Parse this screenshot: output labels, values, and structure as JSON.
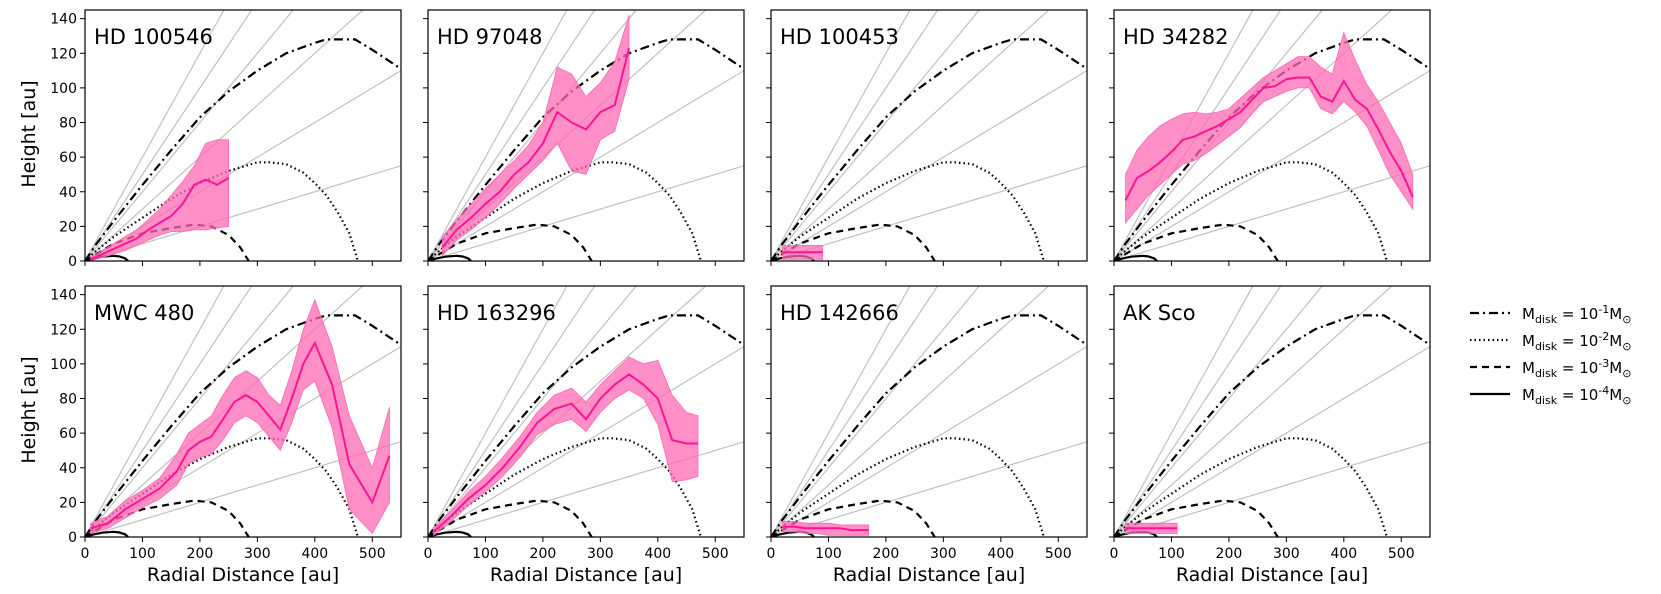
{
  "chart_data": {
    "type": "line",
    "layout": "2 rows x 4 columns of panels, shared x and y axes",
    "xlabel": "Radial Distance [au]",
    "ylabel": "Height [au]",
    "xlim": [
      0,
      550
    ],
    "ylim": [
      0,
      145
    ],
    "xticks": [
      0,
      100,
      200,
      300,
      400,
      500
    ],
    "yticks": [
      0,
      20,
      40,
      60,
      80,
      100,
      120,
      140
    ],
    "grid": false,
    "legend_position": "right, outside panels, centered on bottom row",
    "colors": {
      "measurement": "#ff1493",
      "band": "#ff69b4",
      "model": "#000000",
      "reference_lines": "#c0c0c0"
    },
    "reference_line_slopes": [
      0.1,
      0.2,
      0.3,
      0.4,
      0.5,
      0.6
    ],
    "model_curves": [
      {
        "legend": "M$_{disk}$ = 10$^{-1}$M$_{\\odot}$",
        "style": "dash-dot",
        "x": [
          0,
          20,
          50,
          100,
          150,
          200,
          250,
          300,
          350,
          400,
          420,
          450,
          470,
          500,
          550
        ],
        "y": [
          0,
          10,
          23,
          44,
          64,
          83,
          98,
          110,
          120,
          126,
          128,
          128,
          128,
          122,
          111
        ]
      },
      {
        "legend": "M$_{disk}$ = 10$^{-2}$M$_{\\odot}$",
        "style": "dotted",
        "x": [
          0,
          20,
          50,
          100,
          150,
          200,
          250,
          300,
          320,
          350,
          380,
          400,
          420,
          440,
          460,
          475
        ],
        "y": [
          0,
          6,
          14,
          25,
          36,
          45,
          52,
          57,
          57,
          56,
          51,
          45,
          38,
          28,
          16,
          0
        ]
      },
      {
        "legend": "M$_{disk}$ = 10$^{-3}$M$_{\\odot}$",
        "style": "dashed",
        "x": [
          0,
          20,
          50,
          100,
          150,
          190,
          220,
          250,
          270,
          285
        ],
        "y": [
          0,
          4,
          10,
          16,
          19,
          21,
          20,
          15,
          8,
          0
        ]
      },
      {
        "legend": "M$_{disk}$ = 10$^{-4}$M$_{\\odot}$",
        "style": "solid",
        "x": [
          0,
          15,
          30,
          50,
          60,
          70,
          75
        ],
        "y": [
          0,
          1.5,
          2.5,
          3,
          2.6,
          1.5,
          0
        ]
      }
    ],
    "panels": [
      {
        "title": "HD 100546",
        "x": [
          10,
          30,
          50,
          70,
          90,
          110,
          130,
          150,
          170,
          190,
          210,
          230,
          250
        ],
        "y": [
          1,
          4,
          7,
          10,
          13,
          18,
          22,
          26,
          33,
          44,
          47,
          44,
          48
        ],
        "lower": [
          0,
          2,
          4,
          6,
          9,
          12,
          15,
          17,
          17,
          18,
          18,
          19,
          20
        ],
        "upper": [
          2,
          6,
          10,
          14,
          18,
          24,
          30,
          38,
          46,
          55,
          68,
          70,
          70
        ]
      },
      {
        "title": "HD 97048",
        "x": [
          25,
          50,
          75,
          100,
          125,
          150,
          175,
          200,
          225,
          250,
          275,
          300,
          325,
          350
        ],
        "y": [
          8,
          18,
          25,
          33,
          40,
          50,
          57,
          68,
          86,
          80,
          76,
          86,
          90,
          123
        ],
        "lower": [
          3,
          12,
          18,
          25,
          33,
          42,
          50,
          58,
          68,
          52,
          50,
          70,
          75,
          105
        ],
        "upper": [
          14,
          24,
          33,
          42,
          50,
          58,
          67,
          80,
          112,
          108,
          95,
          103,
          115,
          142
        ]
      },
      {
        "title": "HD 100453",
        "x": [
          20,
          40,
          60,
          80,
          90
        ],
        "y": [
          5,
          5,
          5,
          5,
          5
        ],
        "lower": [
          1,
          1,
          1,
          1,
          1
        ],
        "upper": [
          9,
          9,
          9,
          9,
          9
        ]
      },
      {
        "title": "HD 34282",
        "x": [
          20,
          40,
          60,
          80,
          100,
          120,
          140,
          160,
          180,
          200,
          220,
          240,
          260,
          280,
          300,
          320,
          340,
          360,
          380,
          400,
          420,
          440,
          460,
          480,
          500,
          520
        ],
        "y": [
          35,
          48,
          52,
          57,
          63,
          70,
          72,
          75,
          78,
          82,
          86,
          93,
          100,
          101,
          105,
          106,
          106,
          95,
          92,
          104,
          93,
          88,
          76,
          63,
          52,
          37
        ],
        "lower": [
          22,
          30,
          38,
          44,
          50,
          56,
          58,
          62,
          67,
          72,
          77,
          85,
          92,
          95,
          98,
          100,
          100,
          88,
          85,
          92,
          86,
          78,
          64,
          50,
          40,
          30
        ],
        "upper": [
          50,
          64,
          72,
          78,
          82,
          85,
          86,
          85,
          86,
          88,
          94,
          100,
          106,
          110,
          114,
          118,
          118,
          112,
          108,
          132,
          116,
          102,
          92,
          80,
          68,
          50
        ]
      },
      {
        "title": "MWC 480",
        "x": [
          10,
          40,
          70,
          100,
          130,
          160,
          180,
          200,
          220,
          240,
          260,
          280,
          300,
          320,
          340,
          360,
          380,
          400,
          430,
          460,
          500,
          530
        ],
        "y": [
          5,
          8,
          16,
          22,
          28,
          38,
          50,
          55,
          58,
          68,
          78,
          82,
          78,
          70,
          62,
          80,
          100,
          112,
          88,
          42,
          20,
          47
        ],
        "lower": [
          2,
          5,
          11,
          17,
          22,
          30,
          42,
          46,
          48,
          56,
          66,
          70,
          66,
          58,
          50,
          66,
          85,
          90,
          63,
          16,
          2,
          20
        ],
        "upper": [
          8,
          12,
          21,
          27,
          34,
          48,
          60,
          65,
          70,
          82,
          92,
          96,
          92,
          82,
          76,
          96,
          120,
          137,
          110,
          70,
          40,
          75
        ]
      },
      {
        "title": "HD 163296",
        "x": [
          10,
          40,
          70,
          100,
          130,
          160,
          190,
          220,
          250,
          275,
          300,
          325,
          350,
          375,
          400,
          425,
          450,
          470
        ],
        "y": [
          3,
          12,
          22,
          30,
          40,
          52,
          66,
          74,
          77,
          68,
          80,
          88,
          94,
          88,
          80,
          56,
          54,
          54
        ],
        "lower": [
          1,
          9,
          18,
          26,
          35,
          46,
          59,
          65,
          68,
          61,
          72,
          80,
          85,
          80,
          65,
          32,
          33,
          35
        ],
        "upper": [
          5,
          15,
          26,
          35,
          46,
          58,
          72,
          82,
          86,
          78,
          88,
          96,
          104,
          100,
          102,
          82,
          72,
          70
        ]
      },
      {
        "title": "HD 142666",
        "x": [
          20,
          40,
          60,
          80,
          100,
          120,
          140,
          160,
          170
        ],
        "y": [
          6,
          6,
          5,
          5,
          5,
          5,
          4,
          4,
          4
        ],
        "lower": [
          3,
          3,
          2,
          2,
          1,
          1,
          1,
          1,
          1
        ],
        "upper": [
          9,
          9,
          8,
          8,
          8,
          7,
          7,
          7,
          7
        ]
      },
      {
        "title": "AK Sco",
        "x": [
          20,
          40,
          60,
          80,
          100,
          110
        ],
        "y": [
          5,
          5,
          5,
          5,
          5,
          5
        ],
        "lower": [
          2,
          2,
          2,
          2,
          2,
          2
        ],
        "upper": [
          8,
          8,
          8,
          8,
          8,
          8
        ]
      }
    ]
  }
}
